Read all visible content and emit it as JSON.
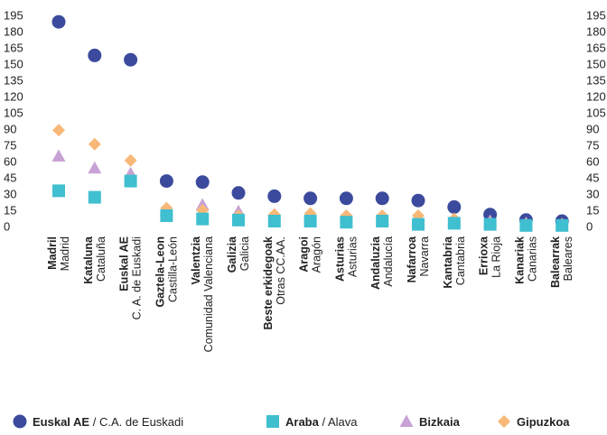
{
  "chart_data": {
    "type": "scatter",
    "categories": [
      {
        "bold": "Madril",
        "sub": "Madrid"
      },
      {
        "bold": "Kataluna",
        "sub": "Cataluña"
      },
      {
        "bold": "Euskal AE",
        "sub": "C. A. de Euskadi"
      },
      {
        "bold": "Gaztela-Leon",
        "sub": "Castilla-León"
      },
      {
        "bold": "Valentzia",
        "sub": "Comunidad Valenciana"
      },
      {
        "bold": "Galizia",
        "sub": "Galicia"
      },
      {
        "bold": "Beste erkidegoak",
        "sub": "Otras CC.AA."
      },
      {
        "bold": "Aragoi",
        "sub": "Aragón"
      },
      {
        "bold": "Asturias",
        "sub": "Asturias"
      },
      {
        "bold": "Andaluzia",
        "sub": "Andalucía"
      },
      {
        "bold": "Nafarroa",
        "sub": "Navarra"
      },
      {
        "bold": "Kantabria",
        "sub": "Cantabria"
      },
      {
        "bold": "Errioxa",
        "sub": "La Rioja"
      },
      {
        "bold": "Kanariak",
        "sub": "Canarias"
      },
      {
        "bold": "Balearrak",
        "sub": "Baleares"
      }
    ],
    "ylim": [
      0,
      195
    ],
    "yticks": [
      0,
      15,
      30,
      45,
      60,
      75,
      90,
      105,
      120,
      135,
      150,
      165,
      180,
      195
    ],
    "grid": false,
    "legend_position": "bottom",
    "series": [
      {
        "name_bold": "Euskal AE",
        "name_rest": " / C.A. de Euskadi",
        "marker": "circle",
        "color": "#3b4a9c",
        "values": [
          189,
          158,
          154,
          42,
          41,
          31,
          28,
          26,
          26,
          26,
          24,
          18,
          11,
          6,
          5
        ]
      },
      {
        "name_bold": "Araba",
        "name_rest": " / Alava",
        "marker": "square",
        "color": "#3fbfcf",
        "values": [
          33,
          27,
          42,
          10,
          7,
          6,
          5,
          5,
          4,
          5,
          2,
          3,
          2,
          1,
          1
        ]
      },
      {
        "name_bold": "Bizkaia",
        "name_rest": "",
        "marker": "triangle",
        "color": "#c8a2d4",
        "values": [
          65,
          54,
          49,
          15,
          20,
          14,
          11,
          9,
          9,
          7,
          6,
          5,
          5,
          3,
          2
        ]
      },
      {
        "name_bold": "Gipuzkoa",
        "name_rest": "",
        "marker": "diamond",
        "color": "#f8b878",
        "values": [
          89,
          76,
          61,
          17,
          15,
          10,
          11,
          12,
          10,
          10,
          10,
          7,
          3,
          2,
          2
        ]
      }
    ]
  }
}
